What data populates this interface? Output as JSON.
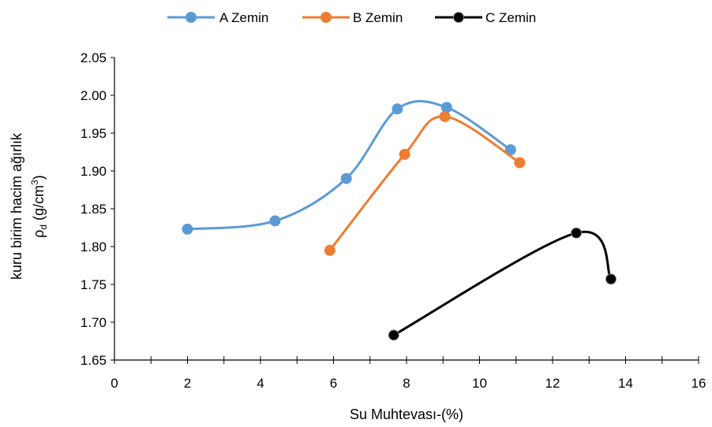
{
  "chart_data": {
    "type": "scatter",
    "xlabel": "Su Muhtevası-(%)",
    "ylabel_line1": "kuru birim hacim ağırlık",
    "ylabel_line2_main": "ρ",
    "ylabel_line2_sub": "d",
    "ylabel_line2_unit": " (g/cm",
    "ylabel_line2_sup": "3",
    "ylabel_line2_end": ")",
    "xlim": [
      0,
      16
    ],
    "ylim": [
      1.65,
      2.05
    ],
    "x_ticks": [
      0,
      2,
      4,
      6,
      8,
      10,
      12,
      14,
      16
    ],
    "y_ticks": [
      "1.65",
      "1.70",
      "1.75",
      "1.80",
      "1.85",
      "1.90",
      "1.95",
      "2.00",
      "2.05"
    ],
    "grid": false,
    "legend_position": "top",
    "smooth": true,
    "series": [
      {
        "name": "A Zemin",
        "color": "#5b9bd5",
        "marker_fill": "#5b9bd5",
        "x": [
          2.0,
          4.4,
          6.35,
          7.75,
          9.1,
          10.85
        ],
        "y": [
          1.823,
          1.834,
          1.89,
          1.982,
          1.984,
          1.928
        ]
      },
      {
        "name": "B Zemin",
        "color": "#ed7d31",
        "marker_fill": "#ed7d31",
        "x": [
          5.9,
          7.95,
          9.05,
          11.1
        ],
        "y": [
          1.795,
          1.922,
          1.972,
          1.911
        ]
      },
      {
        "name": "C Zemin",
        "color": "#000000",
        "marker_fill": "#000000",
        "x": [
          7.65,
          12.65,
          13.6
        ],
        "y": [
          1.683,
          1.818,
          1.757
        ]
      }
    ]
  }
}
